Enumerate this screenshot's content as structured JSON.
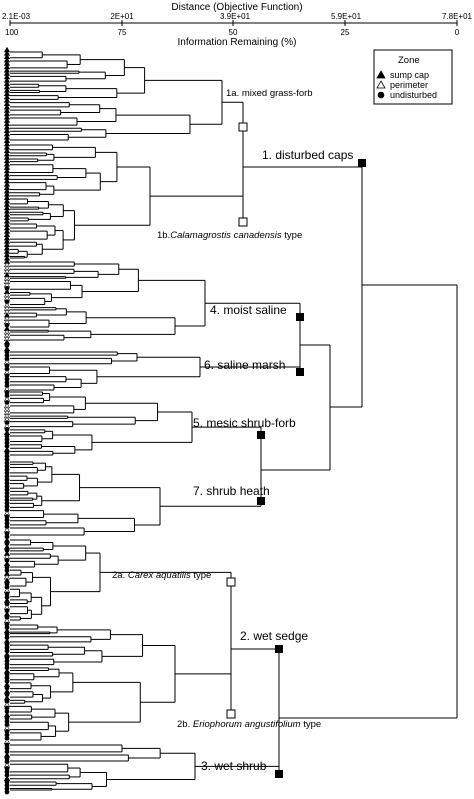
{
  "axes": {
    "top_title": "Distance (Objective Function)",
    "top_ticks": [
      "2.1E-03",
      "2E+01",
      "3.9E+01",
      "5.9E+01",
      "7.8E+01"
    ],
    "bottom_title": "Information Remaining (%)",
    "bottom_ticks": [
      "100",
      "75",
      "50",
      "25",
      "0"
    ]
  },
  "legend": {
    "title": "Zone",
    "items": [
      {
        "label": "sump cap",
        "symbol": "triangle-filled"
      },
      {
        "label": "perimeter",
        "symbol": "triangle-open"
      },
      {
        "label": "undisturbed",
        "symbol": "circle-filled"
      }
    ]
  },
  "groups": {
    "g1a": {
      "label": "1a. mixed grass-forb"
    },
    "g1b": {
      "prefix": "1b.",
      "italic": "Calamagrostis canadensis",
      "suffix": " type"
    },
    "g1": {
      "label": "1. disturbed caps"
    },
    "g4": {
      "label": "4. moist saline"
    },
    "g6": {
      "label": "6. saline marsh"
    },
    "g5": {
      "label": "5. mesic shrub-forb"
    },
    "g7": {
      "label": "7. shrub heath"
    },
    "g2a": {
      "prefix": "2a. ",
      "italic": "Carex aquatilis",
      "suffix": " type"
    },
    "g2": {
      "label": "2. wet sedge"
    },
    "g2b": {
      "prefix": "2b. ",
      "italic": "Eriophorum angustifolium",
      "suffix": " type"
    },
    "g3": {
      "label": "3. wet shrub"
    }
  },
  "leaves": {
    "symbols": [
      "triangle-filled",
      "triangle-filled",
      "triangle-filled",
      "triangle-filled",
      "triangle-filled",
      "triangle-filled",
      "triangle-filled",
      "triangle-filled",
      "triangle-filled",
      "triangle-filled",
      "triangle-filled",
      "triangle-filled",
      "triangle-filled",
      "triangle-filled",
      "triangle-filled",
      "triangle-filled",
      "triangle-filled",
      "triangle-filled",
      "triangle-filled",
      "triangle-filled",
      "triangle-filled",
      "triangle-filled",
      "triangle-filled",
      "triangle-filled",
      "triangle-filled",
      "triangle-filled",
      "triangle-filled",
      "triangle-filled",
      "triangle-filled",
      "triangle-filled",
      "triangle-filled",
      "triangle-filled",
      "triangle-filled",
      "triangle-filled",
      "triangle-filled",
      "triangle-filled",
      "triangle-filled",
      "triangle-filled",
      "triangle-filled",
      "triangle-filled",
      "triangle-filled",
      "triangle-filled",
      "triangle-filled",
      "triangle-filled",
      "triangle-filled",
      "triangle-filled",
      "triangle-filled",
      "triangle-filled",
      "triangle-filled",
      "triangle-filled",
      "triangle-filled",
      "triangle-filled",
      "triangle-filled",
      "triangle-filled",
      "triangle-filled",
      "triangle-filled",
      "triangle-filled",
      "triangle-filled",
      "triangle-filled",
      "triangle-filled",
      "triangle-filled",
      "triangle-filled",
      "triangle-filled",
      "triangle-filled",
      "triangle-open",
      "triangle-open",
      "triangle-open",
      "triangle-filled",
      "triangle-open",
      "triangle-open",
      "triangle-open",
      "circle-filled",
      "triangle-filled",
      "triangle-open",
      "triangle-open",
      "circle-filled",
      "triangle-open",
      "triangle-open",
      "triangle-open",
      "triangle-filled",
      "triangle-open",
      "triangle-open",
      "circle-filled",
      "triangle-filled",
      "triangle-open",
      "triangle-open",
      "triangle-open",
      "triangle-filled",
      "circle-filled",
      "triangle-filled",
      "circle-filled",
      "circle-filled",
      "circle-filled",
      "triangle-open",
      "circle-filled",
      "circle-filled",
      "triangle-open",
      "circle-filled",
      "circle-filled",
      "circle-filled",
      "circle-filled",
      "triangle-open",
      "circle-filled",
      "circle-filled",
      "triangle-open",
      "circle-filled",
      "triangle-open",
      "triangle-open",
      "triangle-open",
      "triangle-open",
      "triangle-open",
      "circle-filled",
      "triangle-open",
      "circle-filled",
      "triangle-filled",
      "circle-filled",
      "circle-filled",
      "circle-filled",
      "circle-filled",
      "triangle-filled",
      "circle-filled",
      "circle-filled",
      "circle-filled",
      "circle-filled",
      "circle-filled",
      "circle-filled",
      "circle-filled",
      "circle-filled",
      "circle-filled",
      "circle-filled",
      "circle-filled",
      "circle-filled",
      "circle-filled",
      "circle-filled",
      "circle-filled",
      "circle-filled",
      "circle-filled",
      "circle-filled",
      "triangle-open",
      "circle-filled",
      "circle-filled",
      "circle-filled",
      "circle-filled",
      "triangle-open",
      "circle-filled",
      "circle-filled",
      "triangle-filled",
      "circle-filled",
      "triangle-filled",
      "circle-filled",
      "triangle-filled",
      "triangle-open",
      "circle-filled",
      "triangle-filled",
      "circle-filled",
      "circle-filled",
      "triangle-filled",
      "triangle-open",
      "triangle-filled",
      "circle-filled",
      "circle-filled",
      "triangle-open",
      "circle-filled",
      "circle-filled",
      "triangle-filled",
      "circle-filled",
      "triangle-open",
      "circle-filled",
      "triangle-filled",
      "circle-filled",
      "triangle-open",
      "circle-filled",
      "circle-filled",
      "triangle-filled",
      "circle-filled",
      "circle-filled",
      "triangle-filled",
      "circle-filled",
      "circle-filled",
      "circle-filled",
      "triangle-filled",
      "circle-filled",
      "circle-filled",
      "circle-filled",
      "circle-filled",
      "triangle-filled",
      "circle-filled",
      "circle-filled",
      "circle-filled",
      "triangle-filled",
      "circle-filled",
      "triangle-filled",
      "circle-filled",
      "triangle-filled",
      "circle-filled",
      "triangle-open",
      "circle-filled",
      "circle-filled",
      "triangle-filled",
      "circle-filled",
      "circle-filled",
      "circle-filled",
      "triangle-open",
      "circle-filled",
      "circle-filled",
      "circle-filled",
      "triangle-open",
      "circle-filled",
      "circle-filled",
      "circle-filled",
      "triangle-filled",
      "circle-filled",
      "circle-filled",
      "triangle-open",
      "circle-filled",
      "circle-filled",
      "circle-filled",
      "triangle-filled",
      "circle-filled",
      "circle-filled",
      "circle-filled",
      "circle-filled"
    ]
  }
}
